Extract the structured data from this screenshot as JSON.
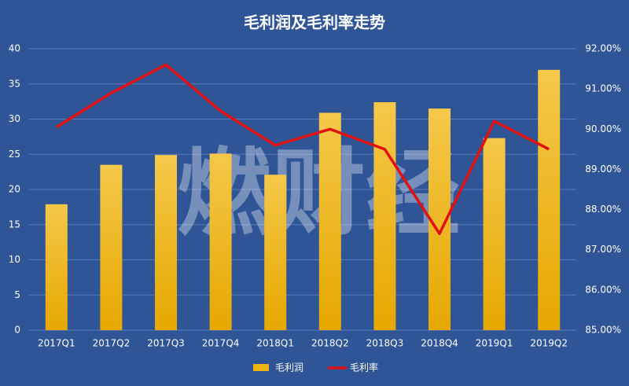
{
  "chart_data": {
    "type": "bar",
    "title": "毛利润及毛利率走势",
    "watermark": "燃财经",
    "categories": [
      "2017Q1",
      "2017Q2",
      "2017Q3",
      "2017Q4",
      "2018Q1",
      "2018Q2",
      "2018Q3",
      "2018Q4",
      "2019Q1",
      "2019Q2"
    ],
    "series": [
      {
        "name": "毛利润",
        "type": "bar",
        "color": "#f0b415",
        "values": [
          17.9,
          23.5,
          24.9,
          25.1,
          22.1,
          30.9,
          32.4,
          31.5,
          27.3,
          37.0
        ]
      },
      {
        "name": "毛利率",
        "type": "line",
        "axis": "y2",
        "color": "#e01010",
        "values": [
          90.05,
          90.9,
          91.6,
          90.45,
          89.6,
          90.0,
          89.5,
          87.4,
          90.2,
          89.5
        ]
      }
    ],
    "ylim": [
      0,
      40
    ],
    "yticks": [
      0,
      5,
      10,
      15,
      20,
      25,
      30,
      35,
      40
    ],
    "y2lim": [
      85,
      92
    ],
    "y2ticks": [
      {
        "value": 85,
        "label": "85.00%"
      },
      {
        "value": 86,
        "label": "86.00%"
      },
      {
        "value": 87,
        "label": "87.00%"
      },
      {
        "value": 88,
        "label": "88.00%"
      },
      {
        "value": 89,
        "label": "89.00%"
      },
      {
        "value": 90,
        "label": "90.00%"
      },
      {
        "value": 91,
        "label": "91.00%"
      },
      {
        "value": 92,
        "label": "92.00%"
      }
    ],
    "grid": true,
    "legend": "bottom"
  }
}
